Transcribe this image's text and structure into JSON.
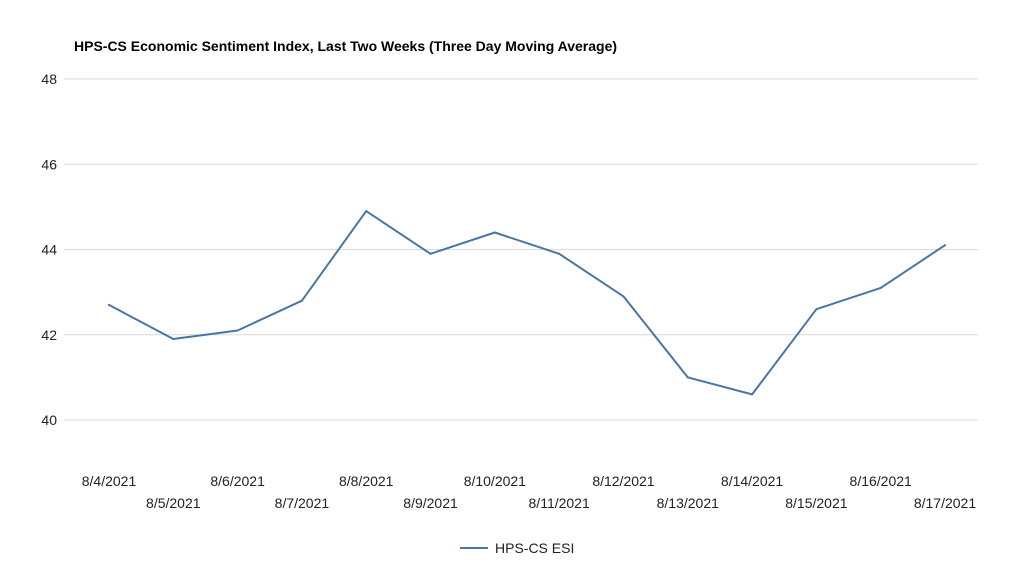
{
  "chart_data": {
    "type": "line",
    "title": "HPS-CS Economic Sentiment Index, Last Two Weeks (Three Day Moving Average)",
    "xlabel": "",
    "ylabel": "",
    "categories": [
      "8/4/2021",
      "8/5/2021",
      "8/6/2021",
      "8/7/2021",
      "8/8/2021",
      "8/9/2021",
      "8/10/2021",
      "8/11/2021",
      "8/12/2021",
      "8/13/2021",
      "8/14/2021",
      "8/15/2021",
      "8/16/2021",
      "8/17/2021"
    ],
    "series": [
      {
        "name": "HPS-CS ESI",
        "color": "#4a76a0",
        "values": [
          42.7,
          41.9,
          42.1,
          42.8,
          44.9,
          43.9,
          44.4,
          43.9,
          42.9,
          41.0,
          40.6,
          42.6,
          43.1,
          44.1
        ]
      }
    ],
    "ylim": [
      40,
      48
    ],
    "yticks": [
      "40",
      "42",
      "44",
      "46",
      "48"
    ],
    "grid": true,
    "legend_position": "bottom"
  }
}
